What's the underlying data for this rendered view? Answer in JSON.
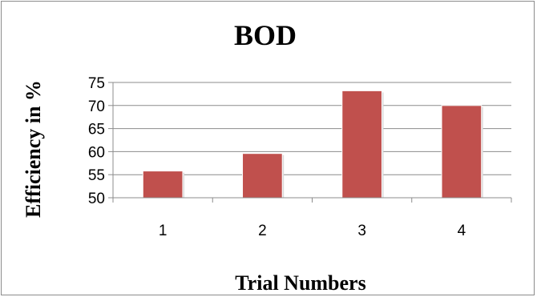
{
  "chart_data": {
    "type": "bar",
    "title": "BOD",
    "xlabel": "Trial Numbers",
    "ylabel": "Efficiency in %",
    "categories": [
      "1",
      "2",
      "3",
      "4"
    ],
    "values": [
      55.8,
      59.6,
      73.2,
      70.0
    ],
    "ylim": [
      50,
      75
    ],
    "yticks": [
      50,
      55,
      60,
      65,
      70,
      75
    ],
    "grid": true,
    "legend": "none",
    "bar_color": "#c0504d"
  }
}
